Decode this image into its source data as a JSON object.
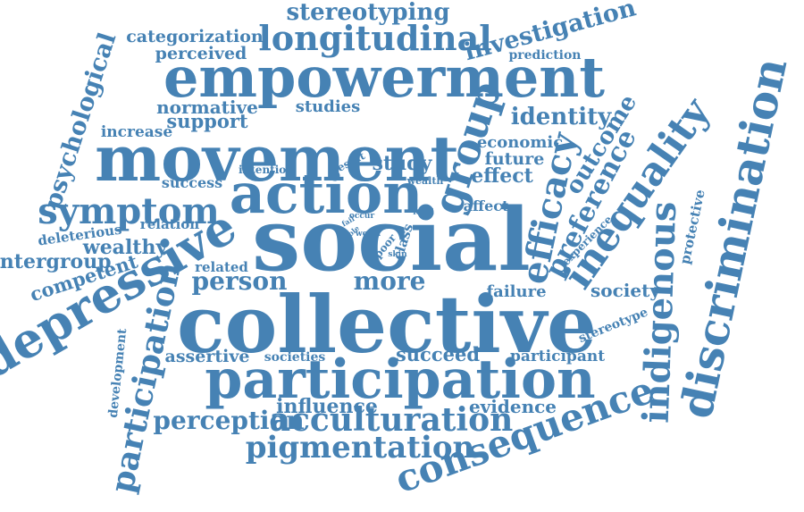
{
  "cloud": {
    "color": "#4682B4",
    "words": [
      "social",
      "collective",
      "movement",
      "empowerment",
      "participation",
      "action",
      "depressive",
      "discrimination",
      "consequence",
      "indigenous",
      "inequality",
      "longitudinal",
      "acculturation",
      "pigmentation",
      "preference",
      "efficacy",
      "economic",
      "group",
      "symptom",
      "investigation",
      "stereotyping",
      "psychological",
      "outcome",
      "identity",
      "perception",
      "categorization",
      "perceived",
      "support",
      "normative",
      "increase",
      "studies",
      "study",
      "effect",
      "future",
      "higher",
      "success",
      "intention",
      "result",
      "wealth",
      "affect",
      "relation",
      "deleterious",
      "wealthy",
      "intergroup",
      "competent",
      "related",
      "person",
      "more",
      "societies",
      "assertive",
      "succeed",
      "participant",
      "influence",
      "evidence",
      "development",
      "failure",
      "society",
      "stereotype",
      "protective",
      "experience",
      "class",
      "poor",
      "world",
      "fail",
      "occur",
      "skin",
      "level",
      "prediction",
      "role"
    ]
  }
}
